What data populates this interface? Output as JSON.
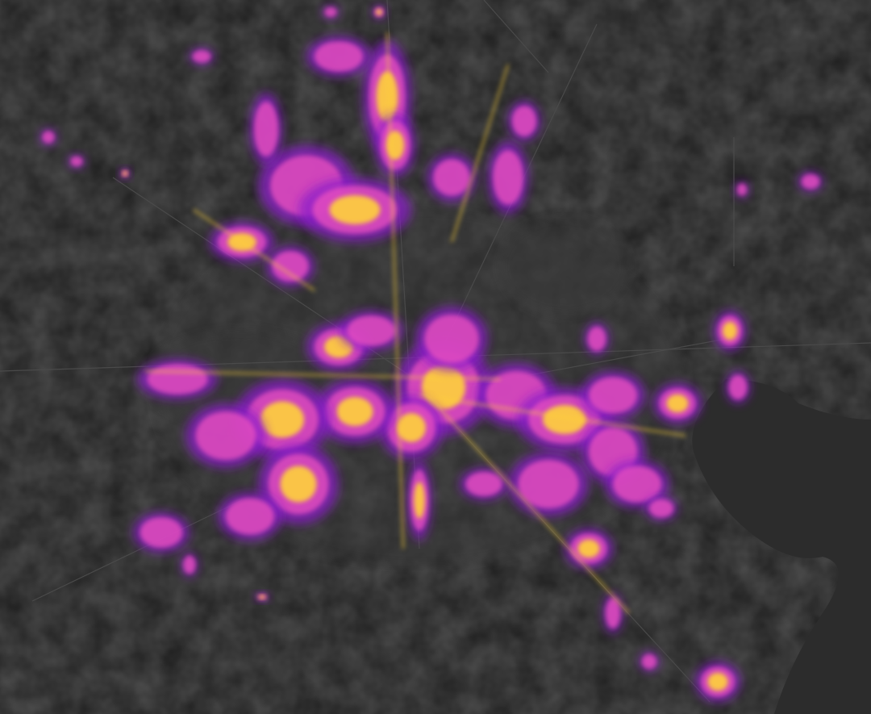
{
  "map": {
    "colors": {
      "land": "#1e1e1e",
      "water": "#2c2c2c",
      "roads": "#4a4a4a",
      "urban_gray": "#3a3a3a",
      "intensity_low": "#8a1cc8",
      "intensity_mid": "#e84fc0",
      "intensity_high": "#ffd23a"
    }
  }
}
